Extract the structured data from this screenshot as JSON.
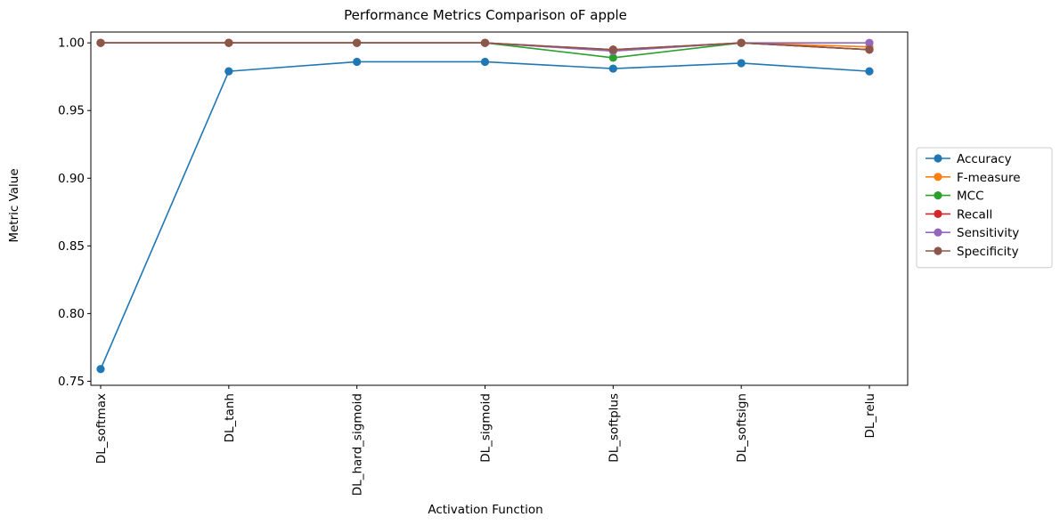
{
  "chart_data": {
    "type": "line",
    "title": "Performance Metrics Comparison oF apple",
    "xlabel": "Activation Function",
    "ylabel": "Metric Value",
    "categories": [
      "DL_softmax",
      "DL_tanh",
      "DL_hard_sigmoid",
      "DL_sigmoid",
      "DL_softplus",
      "DL_softsign",
      "DL_relu"
    ],
    "ylim": [
      0.747,
      1.008
    ],
    "yticks": [
      "0.75",
      "0.80",
      "0.85",
      "0.90",
      "0.95",
      "1.00"
    ],
    "grid": false,
    "legend_position": "right, outside plot",
    "series": [
      {
        "name": "Accuracy",
        "color": "#1f77b4",
        "values": [
          0.759,
          0.979,
          0.986,
          0.986,
          0.981,
          0.985,
          0.979
        ]
      },
      {
        "name": "F-measure",
        "color": "#ff7f0e",
        "values": [
          1.0,
          1.0,
          1.0,
          1.0,
          0.994,
          1.0,
          0.997
        ]
      },
      {
        "name": "MCC",
        "color": "#2ca02c",
        "values": [
          1.0,
          1.0,
          1.0,
          1.0,
          0.989,
          1.0,
          0.995
        ]
      },
      {
        "name": "Recall",
        "color": "#d62728",
        "values": [
          1.0,
          1.0,
          1.0,
          1.0,
          0.995,
          1.0,
          0.995
        ]
      },
      {
        "name": "Sensitivity",
        "color": "#9467bd",
        "values": [
          1.0,
          1.0,
          1.0,
          1.0,
          0.994,
          1.0,
          1.0
        ]
      },
      {
        "name": "Specificity",
        "color": "#8c564b",
        "values": [
          1.0,
          1.0,
          1.0,
          1.0,
          0.995,
          1.0,
          0.995
        ]
      }
    ]
  }
}
